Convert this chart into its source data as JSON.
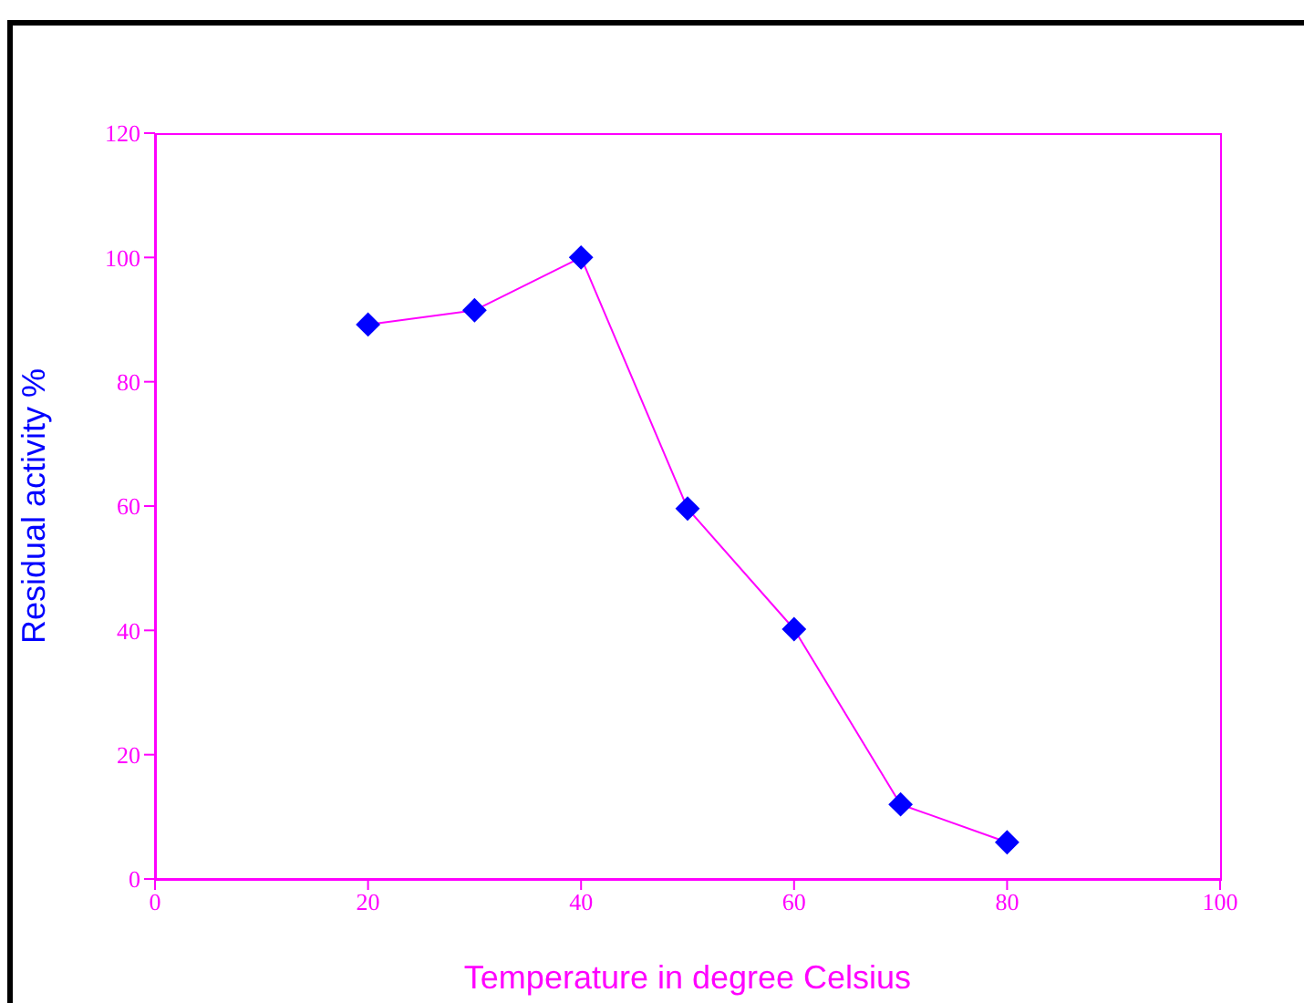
{
  "chart_data": {
    "type": "line",
    "xlabel": "Temperature in degree Celsius",
    "ylabel": "Residual activity %",
    "x": [
      20,
      30,
      40,
      50,
      60,
      70,
      80
    ],
    "series": [
      {
        "color": "#ff00ff",
        "colors": [
          "#0000ff",
          "#0000ff",
          "#0000ff",
          "#0000ff",
          "#0000ff",
          "#0000ff",
          "#0000ff"
        ],
        "values": [
          89.2,
          91.5,
          100,
          59.6,
          40.2,
          12.0,
          5.9
        ]
      }
    ],
    "xlim": [
      0,
      100
    ],
    "xticks": [
      0,
      20,
      40,
      60,
      80,
      100
    ],
    "ylim": [
      0,
      120
    ],
    "yticks": [
      0,
      20,
      40,
      60,
      80,
      100,
      120
    ],
    "grid": false,
    "legend": false,
    "marker": "diamond",
    "line_style": "solid"
  }
}
